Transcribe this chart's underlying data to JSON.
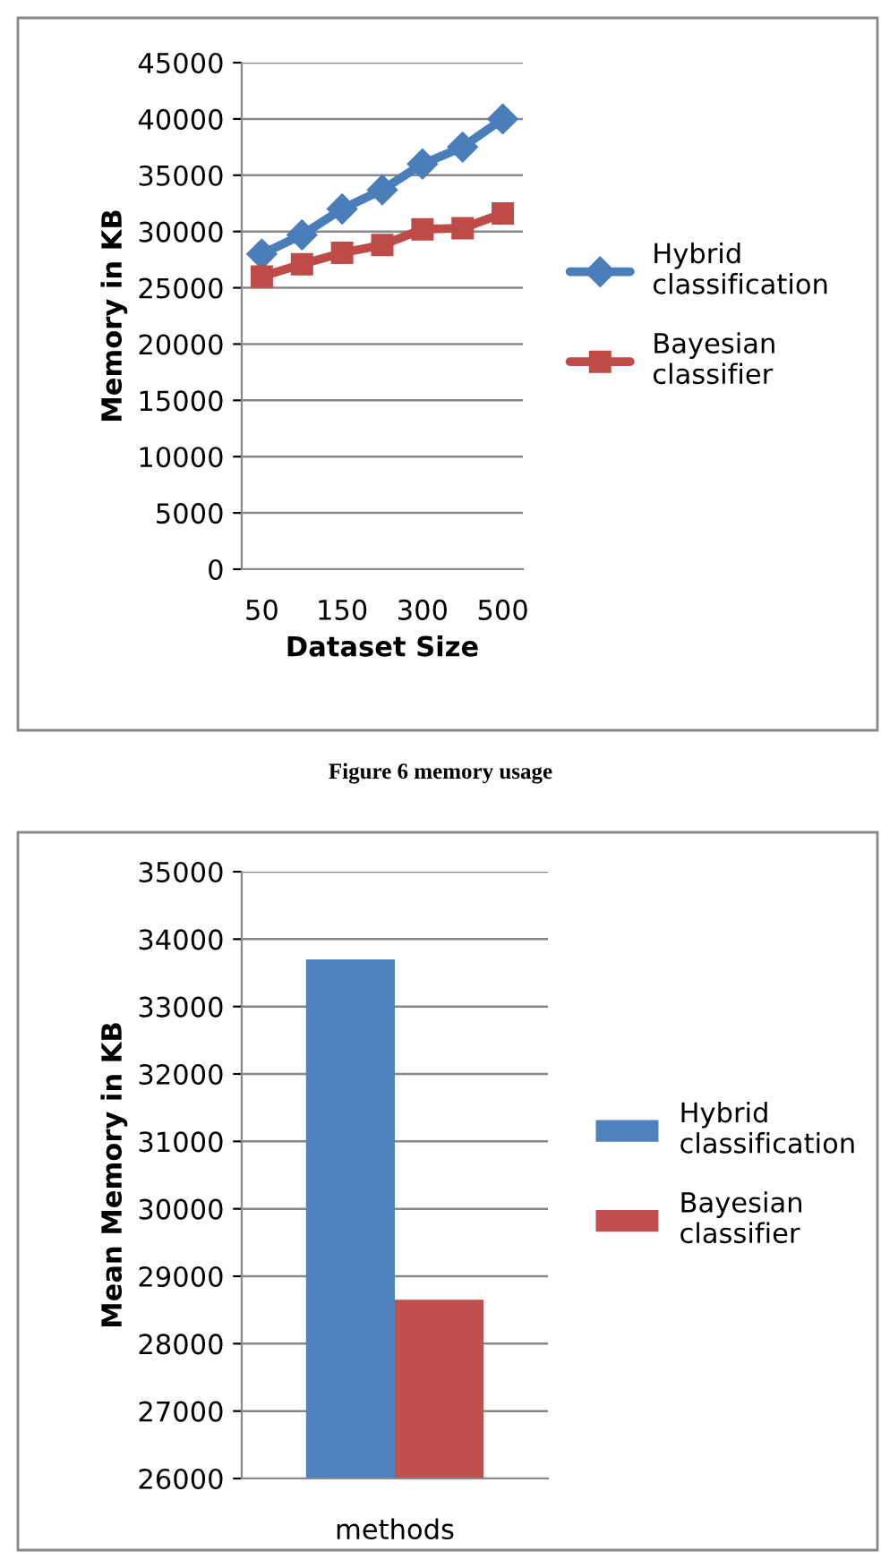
{
  "chart_data": [
    {
      "type": "line",
      "xlabel": "Dataset Size",
      "ylabel": "Memory in KB",
      "categories": [
        "50",
        null,
        "150",
        null,
        "300",
        null,
        "500"
      ],
      "ylim": [
        0,
        45000
      ],
      "yticks": [
        0,
        5000,
        10000,
        15000,
        20000,
        25000,
        30000,
        35000,
        40000,
        45000
      ],
      "grid": "y",
      "legend": "right",
      "series": [
        {
          "name": "Hybrid\nclassification",
          "color": "#4a7ebb",
          "marker": "diamond",
          "values": [
            28000,
            29700,
            32000,
            33700,
            36000,
            37500,
            40000
          ]
        },
        {
          "name": "Bayesian\nclassifier",
          "color": "#be4b48",
          "marker": "square",
          "values": [
            26000,
            27100,
            28100,
            28800,
            30200,
            30300,
            31600
          ]
        }
      ],
      "annotations": [
        "Figure 6 memory usage"
      ]
    },
    {
      "type": "bar",
      "xlabel": "methods",
      "ylabel": "Mean Memory in KB",
      "categories": [
        null
      ],
      "ylim": [
        26000,
        35000
      ],
      "yticks": [
        26000,
        27000,
        28000,
        29000,
        30000,
        31000,
        32000,
        33000,
        34000,
        35000
      ],
      "grid": "y",
      "legend": "right",
      "series": [
        {
          "name": "Hybrid\nclassification",
          "color": "#4f81bd",
          "values": [
            33700
          ]
        },
        {
          "name": "Bayesian\nclassifier",
          "color": "#c0504d",
          "values": [
            28650
          ]
        }
      ]
    }
  ]
}
